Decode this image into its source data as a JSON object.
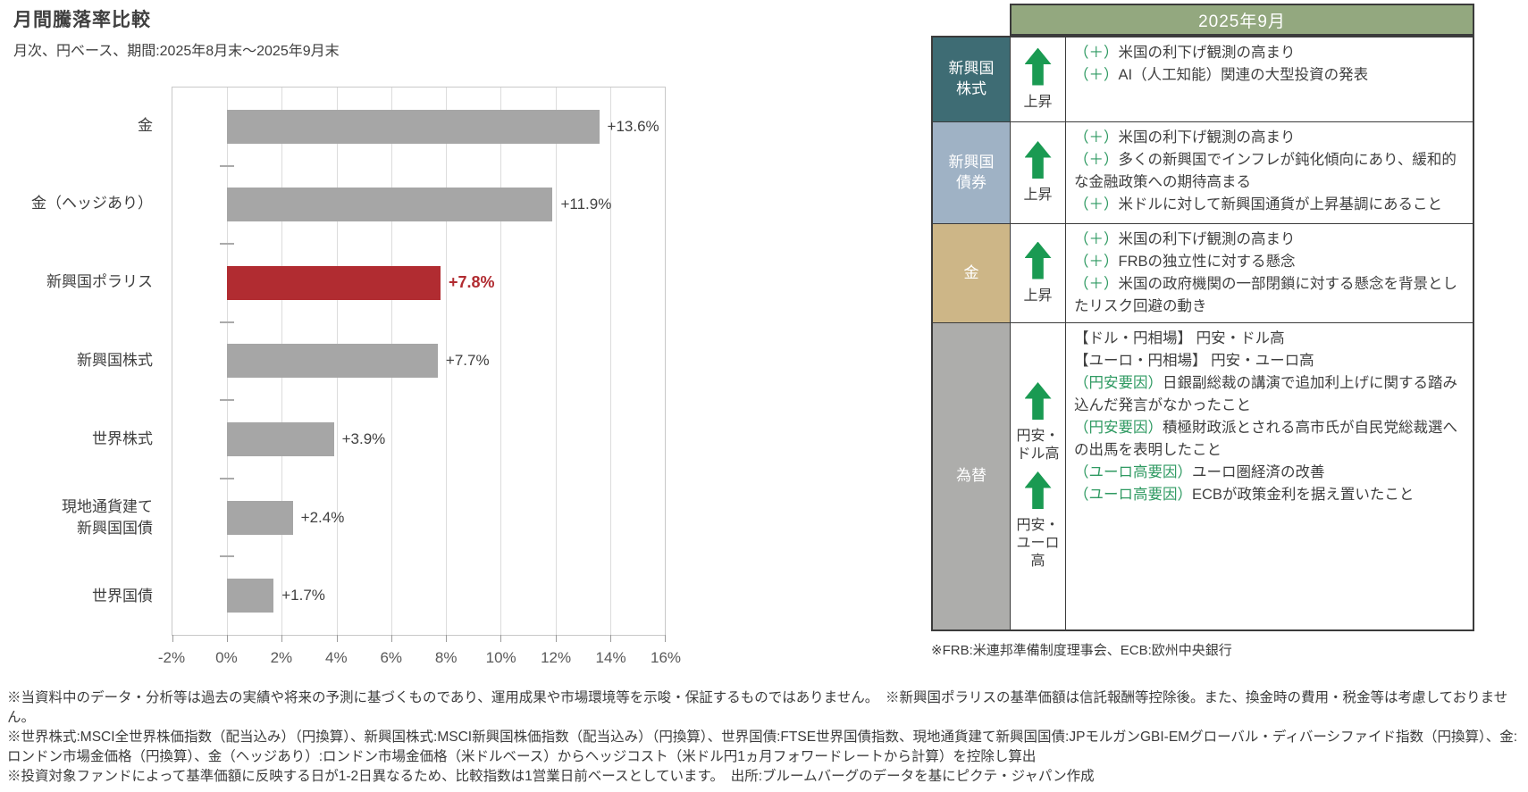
{
  "accent_colors": {
    "bar_gray": "#a6a6a6",
    "bar_red": "#b12c31",
    "arrow_green": "#1a9a52",
    "comment_green": "#2f9a62",
    "header_green": "#93a87f",
    "tbl_border": "#3b3b3b",
    "plot_border": "#c8c8c8",
    "grid": "#dcdcdc"
  },
  "chart": {
    "title": "月間騰落率比較",
    "subtitle": "月次、円ベース、期間:2025年8月末～2025年9月末"
  },
  "chart_data": {
    "type": "bar",
    "orientation": "horizontal",
    "title": "月間騰落率比較",
    "subtitle": "月次、円ベース、期間:2025年8月末～2025年9月末",
    "categories": [
      "金",
      "金（ヘッジあり）",
      "新興国ポラリス",
      "新興国株式",
      "世界株式",
      "現地通貨建て\n新興国国債",
      "世界国債"
    ],
    "values": [
      13.6,
      11.9,
      7.8,
      7.7,
      3.9,
      2.4,
      1.7
    ],
    "value_labels": [
      "+13.6%",
      "+11.9%",
      "+7.8%",
      "+7.7%",
      "+3.9%",
      "+2.4%",
      "+1.7%"
    ],
    "highlight_index": 2,
    "unit": "%",
    "xlim": [
      -2,
      16
    ],
    "x_tick_step": 2,
    "x_tick_labels": [
      "-2%",
      "0%",
      "2%",
      "4%",
      "6%",
      "8%",
      "10%",
      "12%",
      "14%",
      "16%"
    ],
    "grid": true,
    "legend": null
  },
  "table": {
    "header": "2025年9月",
    "rows": [
      {
        "category": "新興国\n株式",
        "category_color": "#3e6c74",
        "indicators": [
          {
            "icon": "up-arrow",
            "label": "上昇"
          }
        ],
        "comments": [
          {
            "prefix": "（＋）",
            "text": "米国の利下げ観測の高まり"
          },
          {
            "prefix": "（＋）",
            "text": "AI（人工知能）関連の大型投資の発表"
          }
        ]
      },
      {
        "category": "新興国\n債券",
        "category_color": "#9fb2c5",
        "indicators": [
          {
            "icon": "up-arrow",
            "label": "上昇"
          }
        ],
        "comments": [
          {
            "prefix": "（＋）",
            "text": "米国の利下げ観測の高まり"
          },
          {
            "prefix": "（＋）",
            "text": "多くの新興国でインフレが鈍化傾向にあり、緩和的な金融政策への期待高まる"
          },
          {
            "prefix": "（＋）",
            "text": "米ドルに対して新興国通貨が上昇基調にあること"
          }
        ]
      },
      {
        "category": "金",
        "category_color": "#cdb687",
        "indicators": [
          {
            "icon": "up-arrow",
            "label": "上昇"
          }
        ],
        "comments": [
          {
            "prefix": "（＋）",
            "text": "米国の利下げ観測の高まり"
          },
          {
            "prefix": "（＋）",
            "text": "FRBの独立性に対する懸念"
          },
          {
            "prefix": "（＋）",
            "text": "米国の政府機関の一部閉鎖に対する懸念を背景としたリスク回避の動き"
          }
        ]
      },
      {
        "category": "為替",
        "category_color": "#adadab",
        "indicators": [
          {
            "icon": "up-arrow",
            "label": "円安・ドル高"
          },
          {
            "icon": "up-arrow",
            "label": "円安・ユーロ高"
          }
        ],
        "comments": [
          {
            "prefix": "",
            "text": "【ドル・円相場】 円安・ドル高"
          },
          {
            "prefix": "",
            "text": "【ユーロ・円相場】 円安・ユーロ高"
          },
          {
            "prefix": "（円安要因）",
            "text": "日銀副総裁の講演で追加利上げに関する踏み込んだ発言がなかったこと"
          },
          {
            "prefix": "（円安要因）",
            "text": "積極財政派とされる高市氏が自民党総裁選への出馬を表明したこと"
          },
          {
            "prefix": "（ユーロ高要因）",
            "text": "ユーロ圏経済の改善"
          },
          {
            "prefix": "（ユーロ高要因）",
            "text": "ECBが政策金利を据え置いたこと"
          }
        ]
      }
    ],
    "footnote": "※FRB:米連邦準備制度理事会、ECB:欧州中央銀行"
  },
  "footnotes": [
    "※当資料中のデータ・分析等は過去の実績や将来の予測に基づくものであり、運用成果や市場環境等を示唆・保証するものではありません。　※新興国ポラリスの基準価額は信託報酬等控除後。また、換金時の費用・税金等は考慮しておりません。",
    "※世界株式:MSCI全世界株価指数（配当込み）（円換算）、新興国株式:MSCI新興国株価指数（配当込み）（円換算）、世界国債:FTSE世界国債指数、現地通貨建て新興国国債:JPモルガンGBI-EMグローバル・ディバーシファイド指数（円換算）、金:ロンドン市場金価格（円換算）、金（ヘッジあり）:ロンドン市場金価格（米ドルベース）からヘッジコスト（米ドル円1ヵ月フォワードレートから計算）を控除し算出",
    "※投資対象ファンドによって基準価額に反映する日が1-2日異なるため、比較指数は1営業日前ベースとしています。　出所:ブルームバーグのデータを基にピクテ・ジャパン作成"
  ]
}
